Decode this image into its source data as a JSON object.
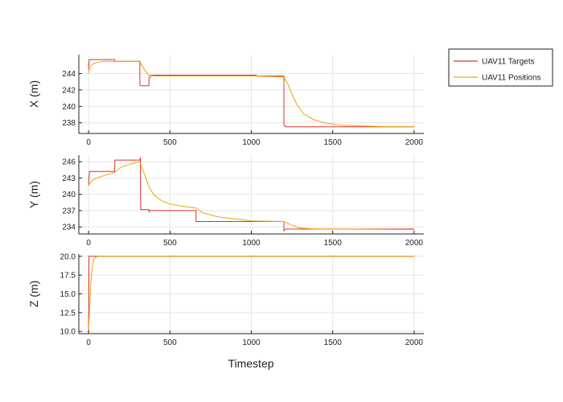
{
  "chart_data": {
    "type": "line",
    "xlabel": "Timestep",
    "legend": {
      "placement": "top-right-outside",
      "entries": [
        {
          "name": "UAV11 Targets",
          "color": "#e0302b"
        },
        {
          "name": "UAV11 Positions",
          "color": "#f0a500"
        }
      ]
    },
    "grid": true,
    "xlim": [
      -60,
      2060
    ],
    "xticks": [
      0,
      500,
      1000,
      1500,
      2000
    ],
    "subplots": [
      {
        "id": "x",
        "ylabel": "X (m)",
        "ylim": [
          236.7,
          246.3
        ],
        "yticks": [
          238,
          240,
          242,
          244
        ],
        "series": [
          {
            "name": "UAV11 Targets",
            "color": "#e0302b",
            "x": [
              0,
              0,
              3,
              3,
              10,
              160,
              162,
              315,
              315,
              320,
              370,
              372,
              380,
              380,
              1030,
              1035,
              1200,
              1200,
              1210,
              1210,
              2000
            ],
            "y": [
              244.5,
              245.1,
              245.1,
              245.7,
              245.7,
              245.7,
              245.5,
              245.5,
              242.6,
              242.5,
              242.5,
              243.5,
              243.6,
              243.8,
              243.8,
              243.7,
              243.7,
              237.7,
              237.6,
              237.5,
              237.5
            ]
          },
          {
            "name": "UAV11 Positions",
            "color": "#f0a500",
            "x": [
              0,
              10,
              30,
              60,
              100,
              160,
              200,
              250,
              300,
              315,
              330,
              350,
              370,
              400,
              500,
              700,
              1000,
              1200,
              1220,
              1250,
              1280,
              1320,
              1380,
              1450,
              1550,
              1700,
              1850,
              2000
            ],
            "y": [
              244.0,
              244.9,
              245.2,
              245.4,
              245.5,
              245.5,
              245.5,
              245.5,
              245.5,
              245.4,
              244.9,
              244.3,
              243.8,
              243.7,
              243.7,
              243.7,
              243.7,
              243.6,
              242.9,
              241.5,
              240.2,
              239.1,
              238.4,
              238.0,
              237.7,
              237.6,
              237.5,
              237.5
            ]
          }
        ]
      },
      {
        "id": "y",
        "ylabel": "Y (m)",
        "ylim": [
          232.7,
          247.2
        ],
        "yticks": [
          234,
          237,
          240,
          243,
          246
        ],
        "series": [
          {
            "name": "UAV11 Targets",
            "color": "#e0302b",
            "x": [
              0,
              5,
              10,
              160,
              162,
              315,
              318,
              320,
              320,
              370,
              372,
              375,
              660,
              660,
              1200,
              1200,
              1205,
              1210,
              2000
            ],
            "y": [
              241.6,
              244.2,
              244.2,
              244.2,
              246.3,
              246.3,
              246.8,
              237.2,
              237.2,
              237.2,
              236.8,
              237.0,
              237.0,
              235.0,
              235.0,
              233.3,
              233.5,
              233.6,
              233.6
            ]
          },
          {
            "name": "UAV11 Positions",
            "color": "#f0a500",
            "x": [
              0,
              20,
              50,
              100,
              160,
              200,
              250,
              300,
              315,
              340,
              370,
              400,
              450,
              500,
              600,
              660,
              700,
              800,
              1000,
              1200,
              1250,
              1300,
              1400,
              1500,
              2000
            ],
            "y": [
              241.7,
              242.5,
              243.0,
              243.5,
              244.0,
              245.0,
              245.5,
              245.9,
              245.9,
              244.0,
              241.5,
              239.9,
              238.8,
              238.2,
              237.7,
              237.5,
              236.6,
              235.8,
              235.1,
              235.0,
              234.3,
              233.8,
              233.6,
              233.6,
              233.5
            ]
          }
        ]
      },
      {
        "id": "z",
        "ylabel": "Z (m)",
        "ylim": [
          9.7,
          20.3
        ],
        "yticks": [
          10.0,
          12.5,
          15.0,
          17.5,
          20.0
        ],
        "series": [
          {
            "name": "UAV11 Targets",
            "color": "#e0302b",
            "x": [
              0,
              3,
              6,
              10,
              2000
            ],
            "y": [
              10.0,
              20.0,
              20.0,
              20.0,
              20.0
            ]
          },
          {
            "name": "UAV11 Positions",
            "color": "#f0a500",
            "x": [
              0,
              5,
              12,
              22,
              32,
              45,
              60,
              2000
            ],
            "y": [
              10.3,
              12.5,
              16.0,
              18.5,
              19.6,
              19.9,
              20.0,
              20.0
            ]
          }
        ]
      }
    ]
  }
}
